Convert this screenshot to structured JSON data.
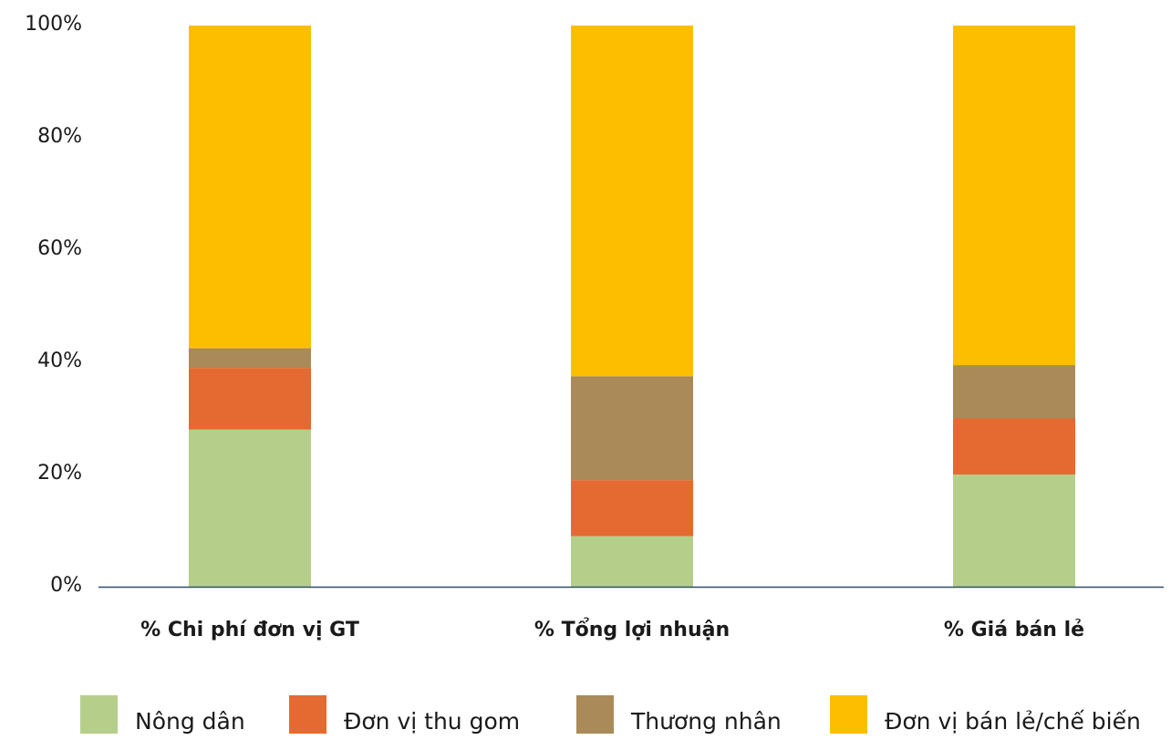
{
  "chart_data": {
    "type": "bar",
    "stacked": true,
    "categories": [
      "% Chi phí đơn vị GT",
      "% Tổng lợi nhuận",
      "% Giá bán lẻ"
    ],
    "series": [
      {
        "name": "Nông dân",
        "color": "#b5cf8b",
        "values": [
          28.0,
          9.0,
          20.0
        ]
      },
      {
        "name": "Đơn vị thu gom",
        "color": "#e56a31",
        "values": [
          11.0,
          10.0,
          10.0
        ]
      },
      {
        "name": "Thương nhân",
        "color": "#a98a58",
        "values": [
          3.5,
          18.5,
          9.5
        ]
      },
      {
        "name": "Đơn vị bán lẻ/chế biến",
        "color": "#fdbe00",
        "values": [
          57.5,
          62.5,
          60.5
        ]
      }
    ],
    "yticks": [
      "0%",
      "20%",
      "40%",
      "60%",
      "80%",
      "100%"
    ],
    "ylim": [
      0,
      100
    ],
    "grid": false,
    "legend_position": "bottom",
    "axis_color": "#2f4f6b"
  }
}
